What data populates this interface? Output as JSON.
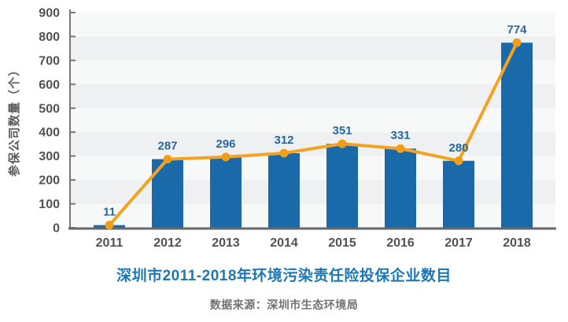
{
  "chart_data": {
    "type": "bar",
    "overlay": "line",
    "title": "深圳市2011-2018年环境污染责任险投保企业数目",
    "source": "数据来源：深圳市生态环境局",
    "ylabel": "参保公司数量（个）",
    "categories": [
      "2011",
      "2012",
      "2013",
      "2014",
      "2015",
      "2016",
      "2017",
      "2018"
    ],
    "values": [
      11,
      287,
      296,
      312,
      351,
      331,
      280,
      774
    ],
    "ylim": [
      0,
      900
    ],
    "y_ticks": [
      0,
      100,
      200,
      300,
      400,
      500,
      600,
      700,
      800,
      900
    ],
    "grid": "alternating-horizontal-bands",
    "legend": "none",
    "colors": {
      "bar": "#1a69a8",
      "line": "#f3a324",
      "marker": "#f09d18",
      "value_label": "#27699f",
      "axis_label": "#515254",
      "axis_line": "#77787b",
      "x_axis_line": "#66686b",
      "band_light": "#f7f8f8",
      "band_dark": "#eff0f1",
      "title": "#1b78b5",
      "source": "#707174",
      "ylabel_color": "#5b5c5e"
    }
  }
}
